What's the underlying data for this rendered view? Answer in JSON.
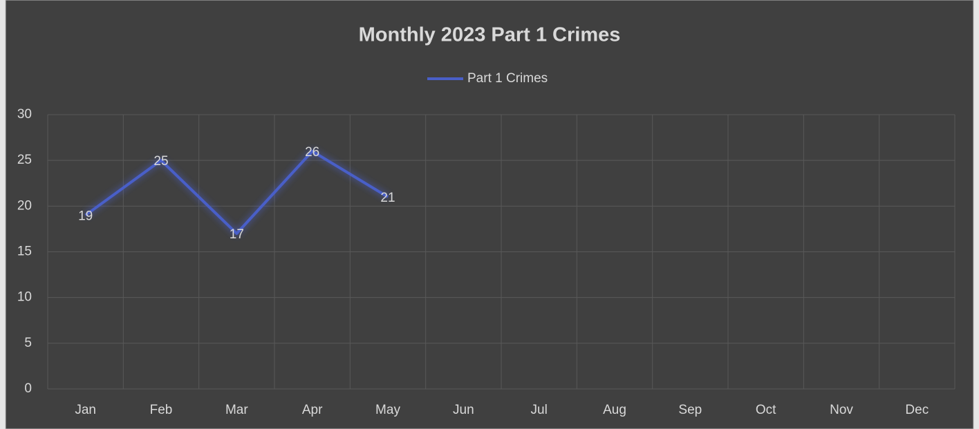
{
  "chart_data": {
    "type": "line",
    "title": "Monthly 2023 Part 1 Crimes",
    "categories": [
      "Jan",
      "Feb",
      "Mar",
      "Apr",
      "May",
      "Jun",
      "Jul",
      "Aug",
      "Sep",
      "Oct",
      "Nov",
      "Dec"
    ],
    "series": [
      {
        "name": "Part 1 Crimes",
        "color": "#4a5fc8",
        "values": [
          19,
          25,
          17,
          26,
          21,
          null,
          null,
          null,
          null,
          null,
          null,
          null
        ]
      }
    ],
    "ylim": [
      0,
      30
    ],
    "yticks": [
      0,
      5,
      10,
      15,
      20,
      25,
      30
    ],
    "grid": true,
    "legend": "top",
    "data_labels": true
  }
}
